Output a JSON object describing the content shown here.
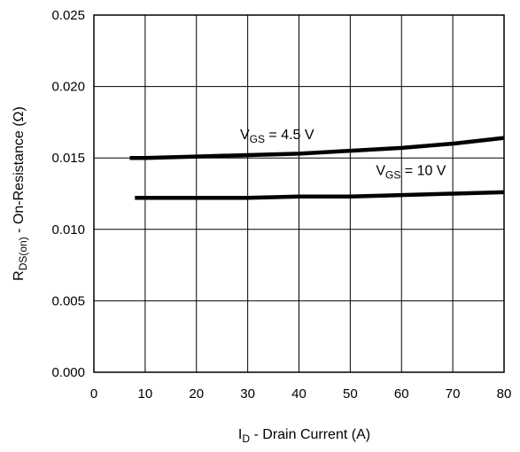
{
  "chart_data": {
    "type": "line",
    "xlabel": {
      "main": "I",
      "sub": "D",
      "rest": " - Drain Current (A)"
    },
    "ylabel": {
      "main": "R",
      "sub": "DS(on)",
      "rest": " - On-Resistance (Ω)"
    },
    "xlim": [
      0,
      80
    ],
    "ylim": [
      0.0,
      0.025
    ],
    "xticks": [
      "0",
      "10",
      "20",
      "30",
      "40",
      "50",
      "60",
      "70",
      "80"
    ],
    "yticks": [
      "0.000",
      "0.005",
      "0.010",
      "0.015",
      "0.020",
      "0.025"
    ],
    "grid": true,
    "series": [
      {
        "name": "VGS = 4.5 V",
        "label": {
          "main": "V",
          "sub": "GS",
          "rest": " = 4.5 V"
        },
        "x": [
          7,
          10,
          20,
          30,
          40,
          50,
          60,
          70,
          80
        ],
        "y": [
          0.015,
          0.015,
          0.0151,
          0.0152,
          0.0153,
          0.0155,
          0.0157,
          0.016,
          0.0164
        ]
      },
      {
        "name": "VGS = 10 V",
        "label": {
          "main": "V",
          "sub": "GS",
          "rest": " = 10 V"
        },
        "x": [
          8,
          10,
          20,
          30,
          40,
          50,
          60,
          70,
          80
        ],
        "y": [
          0.0122,
          0.0122,
          0.0122,
          0.0122,
          0.0123,
          0.0123,
          0.0124,
          0.0125,
          0.0126
        ]
      }
    ]
  }
}
